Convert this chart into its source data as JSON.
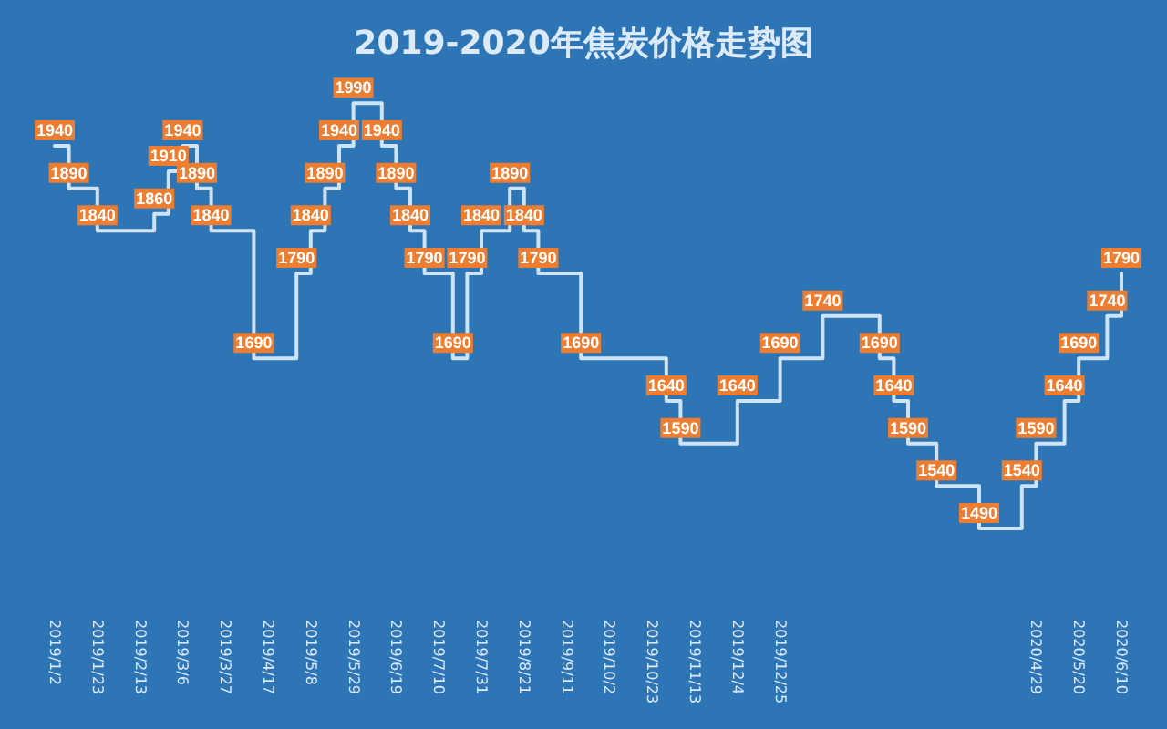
{
  "chart_data": {
    "type": "step",
    "title": "2019-2020年焦炭价格走势图",
    "x": [
      "2019-01-02",
      "2019-01-09",
      "2019-01-23",
      "2019-02-20",
      "2019-02-27",
      "2019-03-06",
      "2019-03-13",
      "2019-03-20",
      "2019-04-10",
      "2019-05-01",
      "2019-05-08",
      "2019-05-15",
      "2019-05-22",
      "2019-05-29",
      "2019-06-12",
      "2019-06-19",
      "2019-06-26",
      "2019-07-03",
      "2019-07-17",
      "2019-07-24",
      "2019-07-31",
      "2019-08-14",
      "2019-08-21",
      "2019-08-28",
      "2019-09-18",
      "2019-10-30",
      "2019-11-06",
      "2019-12-04",
      "2019-12-25",
      "2020-01-15",
      "2020-02-12",
      "2020-02-19",
      "2020-02-26",
      "2020-03-11",
      "2020-04-01",
      "2020-04-22",
      "2020-04-29",
      "2020-05-13",
      "2020-05-20",
      "2020-06-03",
      "2020-06-10"
    ],
    "series": [
      {
        "color": "#cfe3f7",
        "values": [
          1940,
          1890,
          1840,
          1860,
          1910,
          1940,
          1890,
          1840,
          1690,
          1790,
          1840,
          1890,
          1940,
          1990,
          1940,
          1890,
          1840,
          1790,
          1690,
          1790,
          1840,
          1890,
          1840,
          1790,
          1690,
          1640,
          1590,
          1640,
          1690,
          1740,
          1690,
          1640,
          1590,
          1540,
          1490,
          1540,
          1590,
          1640,
          1690,
          1740,
          1790
        ]
      }
    ],
    "data_labels": true,
    "xlim": [
      "2019-01-02",
      "2020-06-10"
    ],
    "xticks": [
      {
        "value": "2019-01-02",
        "label": "2019/1/2"
      },
      {
        "value": "2019-01-23",
        "label": "2019/1/23"
      },
      {
        "value": "2019-02-13",
        "label": "2019/2/13"
      },
      {
        "value": "2019-03-06",
        "label": "2019/3/6"
      },
      {
        "value": "2019-03-27",
        "label": "2019/3/27"
      },
      {
        "value": "2019-04-17",
        "label": "2019/4/17"
      },
      {
        "value": "2019-05-08",
        "label": "2019/5/8"
      },
      {
        "value": "2019-05-29",
        "label": "2019/5/29"
      },
      {
        "value": "2019-06-19",
        "label": "2019/6/19"
      },
      {
        "value": "2019-07-10",
        "label": "2019/7/10"
      },
      {
        "value": "2019-07-31",
        "label": "2019/7/31"
      },
      {
        "value": "2019-08-21",
        "label": "2019/8/21"
      },
      {
        "value": "2019-09-11",
        "label": "2019/9/11"
      },
      {
        "value": "2019-10-02",
        "label": "2019/10/2"
      },
      {
        "value": "2019-10-23",
        "label": "2019/10/23"
      },
      {
        "value": "2019-11-13",
        "label": "2019/11/13"
      },
      {
        "value": "2019-12-04",
        "label": "2019/12/4"
      },
      {
        "value": "2019-12-25",
        "label": "2019/12/25"
      },
      {
        "value": "2020-04-29",
        "label": "2020/4/29"
      },
      {
        "value": "2020-05-20",
        "label": "2020/5/20"
      },
      {
        "value": "2020-06-10",
        "label": "2020/6/10"
      }
    ],
    "tick_labels": "x",
    "grid": false
  }
}
